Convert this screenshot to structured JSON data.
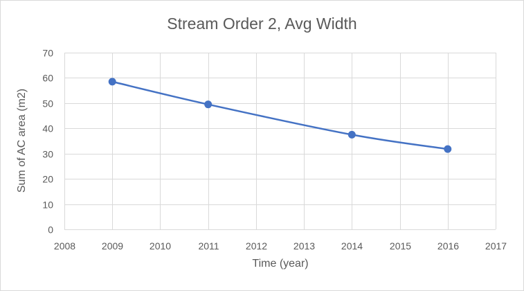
{
  "chart_data": {
    "type": "line",
    "title": "Stream Order 2, Avg Width",
    "xlabel": "Time (year)",
    "ylabel": "Sum of AC area (m2)",
    "xlim": [
      2008,
      2017
    ],
    "ylim": [
      0,
      70
    ],
    "xticks": [
      2008,
      2009,
      2010,
      2011,
      2012,
      2013,
      2014,
      2015,
      2016,
      2017
    ],
    "yticks": [
      0,
      10,
      20,
      30,
      40,
      50,
      60,
      70
    ],
    "grid": true,
    "legend": "none",
    "series": [
      {
        "color": "#4472c4",
        "marker": "circle",
        "smooth": true,
        "points": [
          {
            "x": 2009,
            "y": 58.5
          },
          {
            "x": 2011,
            "y": 49.5
          },
          {
            "x": 2014,
            "y": 37.5
          },
          {
            "x": 2016,
            "y": 31.8
          }
        ]
      }
    ]
  }
}
